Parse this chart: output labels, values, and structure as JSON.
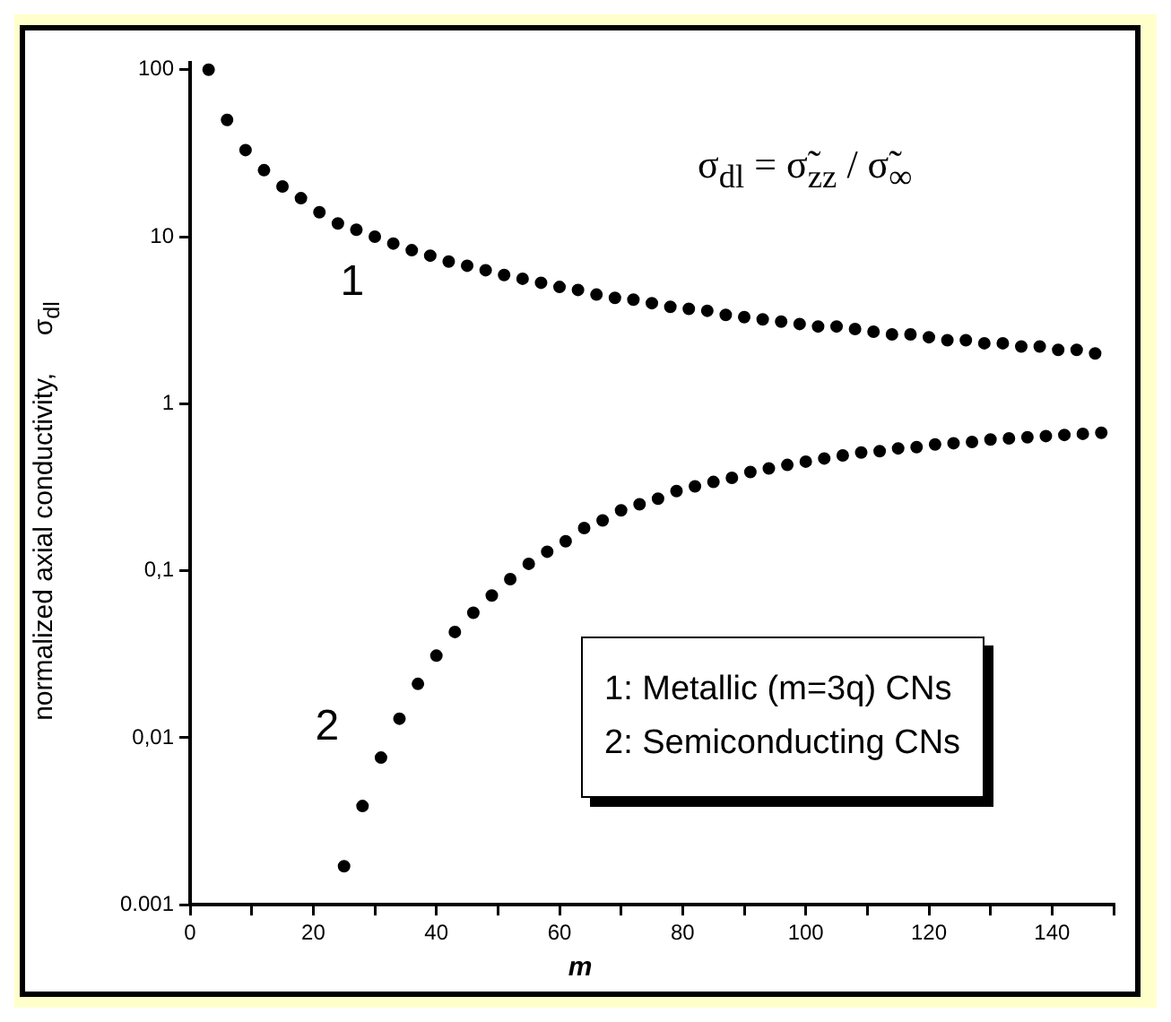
{
  "chart_data": {
    "type": "scatter",
    "xlabel": "m",
    "ylabel": "normalized axial conductivity,     σ$_{dl}$",
    "log": "y",
    "marker": "circle",
    "grid": false,
    "legend": false,
    "xlim": [
      0,
      150
    ],
    "xticks": [
      0,
      {
        "value": 10,
        "label": null
      },
      20,
      {
        "value": 30,
        "label": null
      },
      40,
      {
        "value": 50,
        "label": null
      },
      60,
      {
        "value": 70,
        "label": null
      },
      80,
      {
        "value": 90,
        "label": null
      },
      100,
      {
        "value": 110,
        "label": null
      },
      120,
      {
        "value": 130,
        "label": null
      },
      140,
      {
        "value": 150,
        "label": null
      }
    ],
    "ylim": [
      0.001,
      110
    ],
    "yticks": [
      {
        "value": 0.001,
        "label": "0.001"
      },
      {
        "value": 0.01,
        "label": "0,01"
      },
      {
        "value": 0.1,
        "label": "0,1"
      },
      1,
      10,
      100
    ],
    "annotations": [
      "σ$_{dl}$ = σ̃$_{zz}$ / σ̃$_{∞}$",
      "1: Metallic (m=3q) CNs",
      "2: Semiconducting CNs"
    ],
    "series": [
      {
        "name": "1",
        "color": "#000000",
        "x": [
          3,
          6,
          9,
          12,
          15,
          18,
          21,
          24,
          27,
          30,
          33,
          36,
          39,
          42,
          45,
          48,
          51,
          54,
          57,
          60,
          63,
          66,
          69,
          72,
          75,
          78,
          81,
          84,
          87,
          90,
          93,
          96,
          99,
          102,
          105,
          108,
          111,
          114,
          117,
          120,
          123,
          126,
          129,
          132,
          135,
          138,
          141,
          144,
          147
        ],
        "values": [
          100,
          50,
          33,
          25,
          20,
          17,
          14,
          12,
          11,
          10,
          9.1,
          8.3,
          7.7,
          7.1,
          6.7,
          6.3,
          5.9,
          5.6,
          5.3,
          5.0,
          4.8,
          4.5,
          4.3,
          4.2,
          4.0,
          3.8,
          3.7,
          3.6,
          3.4,
          3.3,
          3.2,
          3.1,
          3.0,
          2.9,
          2.9,
          2.8,
          2.7,
          2.6,
          2.6,
          2.5,
          2.4,
          2.4,
          2.3,
          2.3,
          2.2,
          2.2,
          2.1,
          2.1,
          2.0
        ]
      },
      {
        "name": "2",
        "color": "#000000",
        "x": [
          25,
          28,
          31,
          34,
          37,
          40,
          43,
          46,
          49,
          52,
          55,
          58,
          61,
          64,
          67,
          70,
          73,
          76,
          79,
          82,
          85,
          88,
          91,
          94,
          97,
          100,
          103,
          106,
          109,
          112,
          115,
          118,
          121,
          124,
          127,
          130,
          133,
          136,
          139,
          142,
          145,
          148
        ],
        "values": [
          0.0017,
          0.0039,
          0.0076,
          0.013,
          0.021,
          0.031,
          0.043,
          0.056,
          0.071,
          0.089,
          0.11,
          0.13,
          0.15,
          0.18,
          0.2,
          0.23,
          0.25,
          0.27,
          0.3,
          0.32,
          0.34,
          0.36,
          0.39,
          0.41,
          0.43,
          0.45,
          0.47,
          0.49,
          0.51,
          0.52,
          0.54,
          0.55,
          0.57,
          0.58,
          0.59,
          0.61,
          0.62,
          0.63,
          0.64,
          0.65,
          0.66,
          0.67
        ]
      }
    ]
  }
}
